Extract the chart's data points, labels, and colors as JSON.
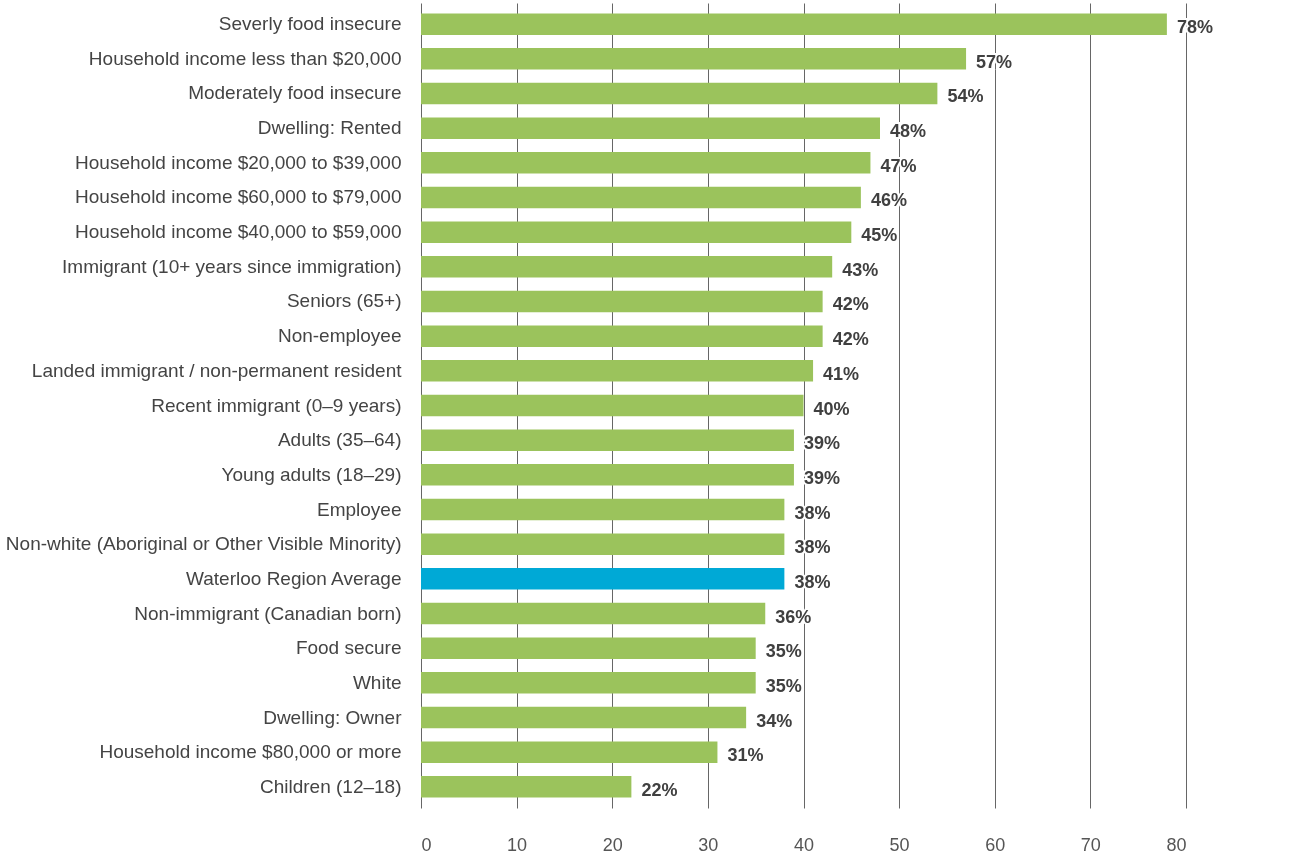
{
  "chart_data": {
    "type": "bar",
    "orientation": "horizontal",
    "categories": [
      "Severly food insecure",
      "Household income less than $20,000",
      "Moderately food insecure",
      "Dwelling: Rented",
      "Household income $20,000 to $39,000",
      "Household income $60,000 to $79,000",
      "Household income $40,000 to $59,000",
      "Immigrant (10+ years since immigration)",
      "Seniors (65+)",
      "Non-employee",
      "Landed immigrant / non-permanent resident",
      "Recent immigrant (0–9 years)",
      "Adults (35–64)",
      "Young adults (18–29)",
      "Employee",
      "Non-white (Aboriginal or Other Visible Minority)",
      "Waterloo Region Average",
      "Non-immigrant (Canadian born)",
      "Food secure",
      "White",
      "Dwelling: Owner",
      "Household income $80,000 or more",
      "Children (12–18)"
    ],
    "values": [
      78,
      57,
      54,
      48,
      47,
      46,
      45,
      43,
      42,
      42,
      41,
      40,
      39,
      39,
      38,
      38,
      38,
      36,
      35,
      35,
      34,
      31,
      22
    ],
    "colors": [
      "#9bc35c",
      "#9bc35c",
      "#9bc35c",
      "#9bc35c",
      "#9bc35c",
      "#9bc35c",
      "#9bc35c",
      "#9bc35c",
      "#9bc35c",
      "#9bc35c",
      "#9bc35c",
      "#9bc35c",
      "#9bc35c",
      "#9bc35c",
      "#9bc35c",
      "#9bc35c",
      "#00a9d6",
      "#9bc35c",
      "#9bc35c",
      "#9bc35c",
      "#9bc35c",
      "#9bc35c",
      "#9bc35c"
    ],
    "value_labels": [
      "78%",
      "57%",
      "54%",
      "48%",
      "47%",
      "46%",
      "45%",
      "43%",
      "42%",
      "42%",
      "41%",
      "40%",
      "39%",
      "39%",
      "38%",
      "38%",
      "38%",
      "36%",
      "35%",
      "35%",
      "34%",
      "31%",
      "22%"
    ],
    "xlim": [
      0,
      80
    ],
    "xticks": [
      0,
      10,
      20,
      30,
      40,
      50,
      60,
      70,
      80
    ],
    "grid": "x"
  }
}
